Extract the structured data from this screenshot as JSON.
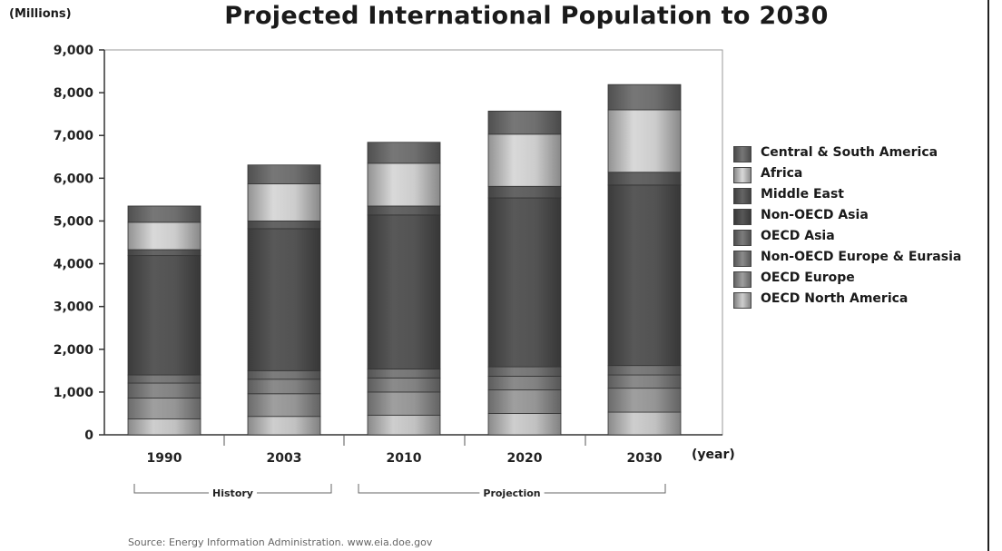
{
  "header": {
    "units": "(Millions)",
    "title": "Projected International Population to 2030"
  },
  "x_unit": "(year)",
  "periods": [
    {
      "label": "History",
      "from": "1990",
      "to": "2003"
    },
    {
      "label": "Projection",
      "from": "2010",
      "to": "2030"
    }
  ],
  "source": "Source: Energy Information Administration.  www.eia.doe.gov",
  "colors": {
    "OECD North America": "#b8b8b8",
    "OECD Europe": "#8e8e8e",
    "Non-OECD Europe & Eurasia": "#7c7c7c",
    "OECD Asia": "#707070",
    "Non-OECD Asia": "#4f4f4f",
    "Middle East": "#5a5a5a",
    "Africa": "#c2c2c2",
    "Central & South America": "#6a6a6a"
  },
  "chart_data": {
    "type": "bar",
    "stacked": true,
    "title": "Projected International Population to 2030",
    "ylabel": "(Millions)",
    "xlabel": "(year)",
    "ylim": [
      0,
      9000
    ],
    "yticks": [
      "0",
      "1,000",
      "2,000",
      "3,000",
      "4,000",
      "5,000",
      "6,000",
      "7,000",
      "8,000",
      "9,000"
    ],
    "categories": [
      "1990",
      "2003",
      "2010",
      "2020",
      "2030"
    ],
    "series": [
      {
        "name": "OECD North America",
        "values": [
          370,
          430,
          460,
          500,
          530
        ]
      },
      {
        "name": "OECD Europe",
        "values": [
          490,
          530,
          540,
          550,
          560
        ]
      },
      {
        "name": "Non-OECD Europe & Eurasia",
        "values": [
          350,
          340,
          330,
          320,
          310
        ]
      },
      {
        "name": "OECD Asia",
        "values": [
          190,
          200,
          210,
          220,
          220
        ]
      },
      {
        "name": "Non-OECD Asia",
        "values": [
          2790,
          3320,
          3600,
          3950,
          4220
        ]
      },
      {
        "name": "Middle East",
        "values": [
          140,
          180,
          210,
          270,
          300
        ]
      },
      {
        "name": "Africa",
        "values": [
          640,
          870,
          1000,
          1220,
          1460
        ]
      },
      {
        "name": "Central & South America",
        "values": [
          380,
          440,
          490,
          540,
          590
        ]
      }
    ],
    "legend_order": [
      "Central & South America",
      "Africa",
      "Middle East",
      "Non-OECD Asia",
      "OECD Asia",
      "Non-OECD Europe & Eurasia",
      "OECD Europe",
      "OECD North America"
    ],
    "legend_position": "right",
    "grid": false
  }
}
